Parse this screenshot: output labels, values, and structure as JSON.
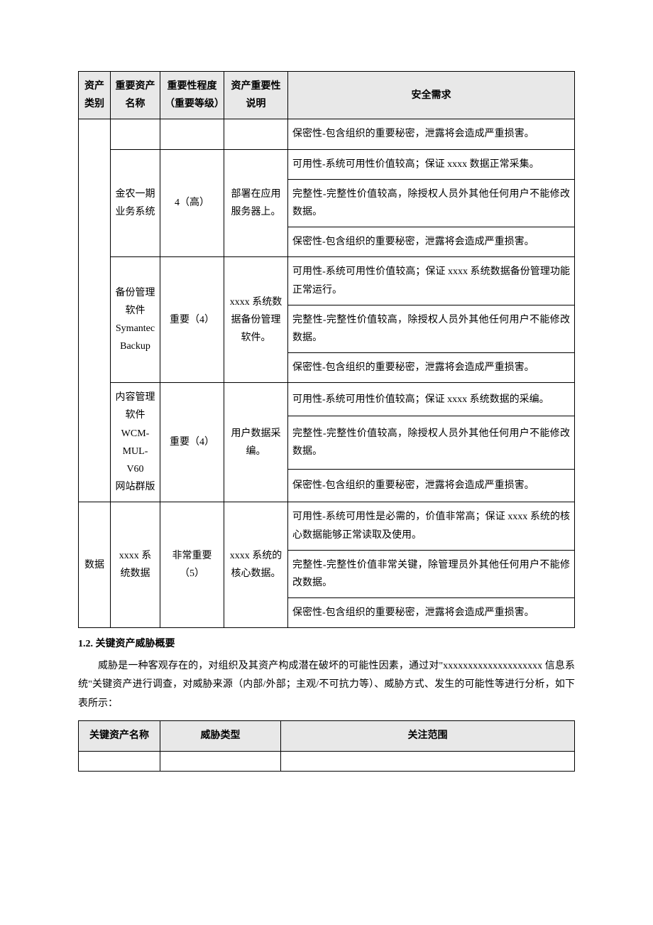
{
  "table1": {
    "headers": {
      "category": "资产类别",
      "name": "重要资产名称",
      "importance": "重要性程度（重要等级）",
      "description": "资产重要性说明",
      "requirement": "安全需求"
    },
    "groups": [
      {
        "category": "",
        "assets": [
          {
            "name": "",
            "importance": "",
            "description": "",
            "requirements": [
              "保密性-包含组织的重要秘密，泄露将会造成严重损害。"
            ]
          },
          {
            "name": "金农一期业务系统",
            "importance": "4（高）",
            "description": "部署在应用服务器上。",
            "requirements": [
              "可用性-系统可用性价值较高；保证 xxxx 数据正常采集。",
              "完整性-完整性价值较高，除授权人员外其他任何用户不能修改数据。",
              "保密性-包含组织的重要秘密，泄露将会造成严重损害。"
            ]
          },
          {
            "name": "备份管理软件\nSymantec Backup",
            "importance": "重要（4）",
            "description": "xxxx 系统数据备份管理软件。",
            "requirements": [
              "可用性-系统可用性价值较高；保证 xxxx 系统数据备份管理功能正常运行。",
              "完整性-完整性价值较高，除授权人员外其他任何用户不能修改数据。",
              "保密性-包含组织的重要秘密，泄露将会造成严重损害。"
            ]
          },
          {
            "name": "内容管理软件\nWCM-MUL-V60\n网站群版",
            "importance": "重要（4）",
            "description": "用户数据采编。",
            "requirements": [
              "可用性-系统可用性价值较高；保证 xxxx 系统数据的采编。",
              "完整性-完整性价值较高，除授权人员外其他任何用户不能修改数据。",
              "保密性-包含组织的重要秘密，泄露将会造成严重损害。"
            ]
          }
        ]
      },
      {
        "category": "数据",
        "assets": [
          {
            "name": "xxxx 系统数据",
            "importance": "非常重要（5）",
            "description": "xxxx 系统的核心数据。",
            "requirements": [
              "可用性-系统可用性是必需的，价值非常高；保证 xxxx 系统的核心数据能够正常读取及使用。",
              "完整性-完整性价值非常关键，除管理员外其他任何用户不能修改数据。",
              "保密性-包含组织的重要秘密，泄露将会造成严重损害。"
            ]
          }
        ]
      }
    ]
  },
  "section": {
    "heading": "1.2. 关键资产威胁概要",
    "body": "威胁是一种客观存在的，对组织及其资产构成潜在破坏的可能性因素，通过对\"xxxxxxxxxxxxxxxxxxxx 信息系统\"关键资产进行调查，对威胁来源（内部/外部；主观/不可抗力等）、威胁方式、发生的可能性等进行分析，如下表所示："
  },
  "table2": {
    "headers": {
      "name": "关键资产名称",
      "type": "威胁类型",
      "scope": "关注范围"
    }
  }
}
